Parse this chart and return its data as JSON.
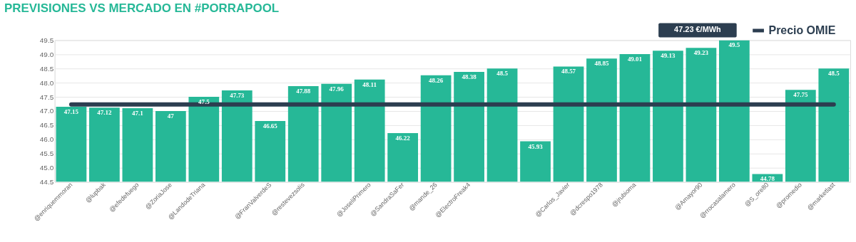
{
  "chart_data": {
    "type": "bar",
    "title": "PREVISIONES VS MERCADO EN #PORRAPOOL",
    "categories": [
      "@enriquemmoran",
      "@lupbak",
      "@efedefuego",
      "@ZoriaJose",
      "@LandodeTriana",
      null,
      "@FranValverdeS",
      "@restevezsolis",
      null,
      "@JoseliPrimero",
      "@SandraSaFer",
      "@mande_26",
      "@ElectroFreak4",
      null,
      null,
      "@Carlos_Javier",
      "@dcrespo1978",
      "@jrubioma",
      null,
      "@Amayor90",
      "@rrocasalamero",
      "@S_ore80",
      "@promedio",
      "@marketlast"
    ],
    "series": [
      {
        "color": "#26b897",
        "values": [
          47.15,
          47.12,
          47.1,
          47,
          47.5,
          47.73,
          46.65,
          47.88,
          47.96,
          48.11,
          46.22,
          48.26,
          48.38,
          48.5,
          45.93,
          48.57,
          48.85,
          49.01,
          49.13,
          49.23,
          49.5,
          44.78,
          47.75,
          48.5
        ],
        "value_labels": [
          "47.15",
          "47.12",
          "47.1",
          "47",
          "47.5",
          "47.73",
          "46.65",
          "47.88",
          "47.96",
          "48.11",
          "46.22",
          "48.26",
          "48.38",
          "48.5",
          "45.93",
          "48.57",
          "48.85",
          "49.01",
          "49.13",
          "49.23",
          "49.5",
          "44.78",
          "47.75",
          "48.5"
        ]
      },
      {
        "type": "line",
        "name": "Precio OMIE",
        "color": "#2c3e50",
        "values": [
          47.23,
          47.23,
          47.23,
          47.23,
          47.23,
          47.23,
          47.23,
          47.23,
          47.23,
          47.23,
          47.23,
          47.23,
          47.23,
          47.23,
          47.23,
          47.23,
          47.23,
          47.23,
          47.23,
          47.23,
          47.23,
          47.23,
          47.23,
          47.23
        ]
      }
    ],
    "ylim": [
      44.5,
      49.5
    ],
    "yticks": [
      {
        "value": 44.5,
        "label": "44.5"
      },
      {
        "value": 45,
        "label": "45.0"
      },
      {
        "value": 45.5,
        "label": "45.5"
      },
      {
        "value": 46,
        "label": "46.0"
      },
      {
        "value": 46.5,
        "label": "46.5"
      },
      {
        "value": 47,
        "label": "47.0"
      },
      {
        "value": 47.5,
        "label": "47.5"
      },
      {
        "value": 48,
        "label": "48.0"
      },
      {
        "value": 48.5,
        "label": "48.5"
      },
      {
        "value": 49,
        "label": "49.0"
      },
      {
        "value": 49.5,
        "label": "49.5"
      }
    ],
    "annotations": [
      "47.23 €/MWh"
    ],
    "grid": "y",
    "legend": "top right"
  }
}
